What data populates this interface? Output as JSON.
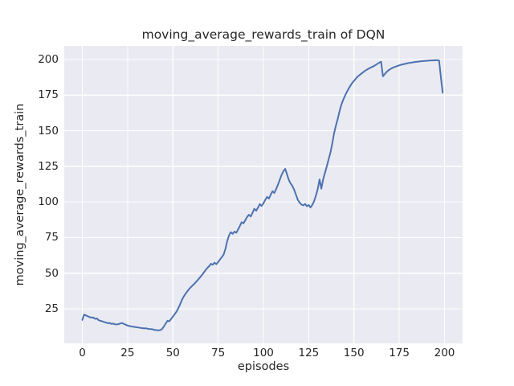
{
  "chart_data": {
    "type": "line",
    "title": "moving_average_rewards_train of DQN",
    "xlabel": "episodes",
    "ylabel": "moving_average_rewards_train",
    "xticks": [
      0,
      25,
      50,
      75,
      100,
      125,
      150,
      175,
      200
    ],
    "yticks": [
      25,
      50,
      75,
      100,
      125,
      150,
      175,
      200
    ],
    "xlim": [
      -10,
      210
    ],
    "ylim": [
      0.7,
      209.6
    ],
    "grid": true,
    "legend_position": "none",
    "style": {
      "axes_background": "#EAEAF2",
      "grid_color": "#FFFFFF",
      "line_color": "#4C72B0",
      "text_color": "#262626",
      "line_width": 2
    },
    "series": [
      {
        "name": "moving_average_rewards_train",
        "color": "#4C72B0",
        "x_start": 0,
        "x_step": 1,
        "values": [
          17.2,
          20.9,
          20.3,
          19.7,
          19.1,
          18.8,
          18.9,
          17.9,
          18.2,
          17.0,
          16.5,
          16.2,
          15.7,
          15.3,
          14.8,
          15.1,
          14.4,
          14.6,
          14.1,
          14.0,
          14.2,
          14.7,
          15.0,
          14.3,
          13.8,
          13.2,
          12.9,
          12.6,
          12.4,
          12.2,
          12.0,
          11.8,
          11.6,
          11.4,
          11.2,
          11.3,
          11.0,
          10.8,
          10.7,
          10.5,
          10.1,
          10.0,
          9.8,
          10.0,
          10.7,
          12.5,
          14.6,
          16.5,
          16.2,
          17.8,
          19.5,
          21.2,
          23.0,
          25.4,
          28.2,
          31.2,
          33.6,
          35.6,
          37.3,
          38.9,
          40.3,
          41.5,
          42.7,
          44.1,
          45.6,
          47.1,
          48.6,
          50.3,
          52.1,
          53.6,
          54.9,
          56.6,
          55.9,
          57.4,
          56.3,
          57.9,
          59.6,
          61.2,
          63.0,
          67.0,
          72.5,
          76.5,
          78.8,
          77.6,
          79.2,
          78.4,
          80.6,
          83.2,
          85.8,
          85.0,
          87.3,
          89.5,
          91.0,
          89.8,
          92.5,
          95.2,
          93.8,
          96.0,
          98.5,
          97.2,
          99.0,
          101.5,
          103.5,
          102.4,
          105.0,
          107.5,
          106.3,
          109.0,
          112.0,
          115.5,
          118.8,
          121.5,
          123.2,
          119.5,
          115.5,
          113.0,
          111.2,
          108.5,
          105.0,
          101.5,
          99.5,
          98.2,
          97.6,
          98.6,
          97.0,
          97.8,
          96.2,
          98.0,
          100.5,
          104.6,
          109.0,
          115.8,
          109.3,
          116.0,
          120.5,
          125.0,
          130.0,
          134.5,
          141.0,
          148.0,
          153.5,
          158.0,
          163.5,
          168.0,
          171.5,
          174.5,
          177.0,
          179.5,
          181.5,
          183.5,
          185.0,
          186.5,
          188.0,
          189.0,
          190.0,
          191.0,
          192.0,
          192.8,
          193.5,
          194.2,
          194.8,
          195.4,
          196.2,
          197.0,
          197.8,
          198.4,
          188.2,
          189.8,
          191.2,
          192.4,
          193.2,
          193.9,
          194.5,
          195.0,
          195.5,
          195.9,
          196.3,
          196.6,
          196.9,
          197.2,
          197.5,
          197.7,
          197.9,
          198.1,
          198.3,
          198.5,
          198.6,
          198.8,
          198.9,
          199.0,
          199.1,
          199.2,
          199.3,
          199.4,
          199.4,
          199.5,
          199.5,
          199.3,
          188.0,
          176.7
        ]
      }
    ]
  }
}
